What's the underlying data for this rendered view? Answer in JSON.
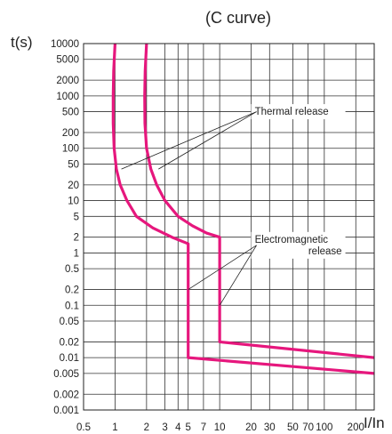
{
  "chart_data": {
    "type": "line",
    "title": "(C curve)",
    "xlabel": "I/In",
    "ylabel": "t(s)",
    "x_scale": "log",
    "y_scale": "log",
    "xlim": [
      0.5,
      300
    ],
    "ylim": [
      0.001,
      10000
    ],
    "grid": true,
    "x_ticks": [
      {
        "value": 0.5,
        "label": "0.5"
      },
      {
        "value": 1,
        "label": "1"
      },
      {
        "value": 2,
        "label": "2"
      },
      {
        "value": 3,
        "label": "3"
      },
      {
        "value": 4,
        "label": "4"
      },
      {
        "value": 5,
        "label": "5"
      },
      {
        "value": 7,
        "label": "7"
      },
      {
        "value": 10,
        "label": "10"
      },
      {
        "value": 20,
        "label": "20"
      },
      {
        "value": 30,
        "label": "30"
      },
      {
        "value": 50,
        "label": "50"
      },
      {
        "value": 70,
        "label": "70"
      },
      {
        "value": 100,
        "label": "100"
      },
      {
        "value": 200,
        "label": "200"
      }
    ],
    "y_ticks": [
      {
        "value": 10000,
        "label": "10000"
      },
      {
        "value": 5000,
        "label": "5000"
      },
      {
        "value": 2000,
        "label": "2000"
      },
      {
        "value": 1000,
        "label": "1000"
      },
      {
        "value": 500,
        "label": "500"
      },
      {
        "value": 200,
        "label": "200"
      },
      {
        "value": 100,
        "label": "100"
      },
      {
        "value": 50,
        "label": "50"
      },
      {
        "value": 20,
        "label": "20"
      },
      {
        "value": 10,
        "label": "10"
      },
      {
        "value": 5,
        "label": "5"
      },
      {
        "value": 2,
        "label": "2"
      },
      {
        "value": 1,
        "label": "1"
      },
      {
        "value": 0.5,
        "label": "0.5"
      },
      {
        "value": 0.2,
        "label": "0.2"
      },
      {
        "value": 0.1,
        "label": "0.1"
      },
      {
        "value": 0.05,
        "label": "0.05"
      },
      {
        "value": 0.02,
        "label": "0.02"
      },
      {
        "value": 0.01,
        "label": "0.01"
      },
      {
        "value": 0.005,
        "label": "0.005"
      },
      {
        "value": 0.002,
        "label": "0.002"
      },
      {
        "value": 0.001,
        "label": "0.001"
      }
    ],
    "series": [
      {
        "color": "#e6177d",
        "points": [
          [
            1.0,
            10000
          ],
          [
            0.97,
            3000
          ],
          [
            0.96,
            1000
          ],
          [
            0.96,
            300
          ],
          [
            0.98,
            100
          ],
          [
            1.03,
            40
          ],
          [
            1.12,
            20
          ],
          [
            1.3,
            10
          ],
          [
            1.6,
            5
          ],
          [
            2.3,
            3
          ],
          [
            3.5,
            2
          ],
          [
            5.0,
            1.5
          ],
          [
            5.0,
            0.01
          ],
          [
            300,
            0.005
          ]
        ]
      },
      {
        "color": "#e6177d",
        "points": [
          [
            2.0,
            10000
          ],
          [
            1.94,
            3000
          ],
          [
            1.92,
            1000
          ],
          [
            1.93,
            300
          ],
          [
            2.0,
            100
          ],
          [
            2.2,
            40
          ],
          [
            2.5,
            20
          ],
          [
            3.0,
            10
          ],
          [
            4.0,
            5
          ],
          [
            5.5,
            3.3
          ],
          [
            7.5,
            2.4
          ],
          [
            10.0,
            2.0
          ],
          [
            10.0,
            0.1
          ],
          [
            10.0,
            0.02
          ],
          [
            300,
            0.01
          ]
        ]
      }
    ],
    "annotations": [
      {
        "label": "Thermal release",
        "anchor": [
          20,
          500
        ],
        "targets": [
          [
            1.15,
            40
          ],
          [
            2.6,
            40
          ]
        ]
      },
      {
        "label": "Electromagnetic release",
        "lines": [
          "Electromagnetic",
          "release"
        ],
        "anchor": [
          20,
          1.4
        ],
        "targets": [
          [
            5.0,
            0.2
          ],
          [
            10.0,
            0.1
          ]
        ]
      }
    ]
  }
}
